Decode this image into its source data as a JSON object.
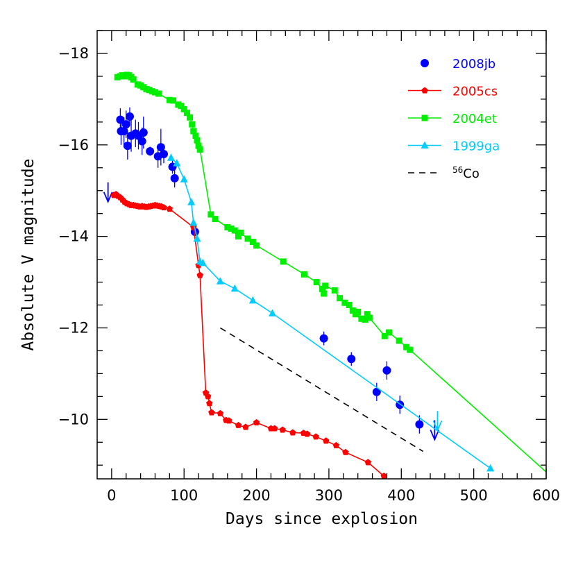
{
  "chart_data": {
    "type": "scatter",
    "xlabel": "Days since explosion",
    "ylabel": "Absolute V magnitude",
    "xlim": [
      -20,
      600
    ],
    "ylim": [
      -8.7,
      -18.5
    ],
    "y_inverted": true,
    "xticks": [
      0,
      100,
      200,
      300,
      400,
      500,
      600
    ],
    "xtick_labels": [
      "0",
      "100",
      "200",
      "300",
      "400",
      "500",
      "600"
    ],
    "yticks": [
      -18,
      -16,
      -14,
      -12,
      -10
    ],
    "ytick_labels": [
      "−18",
      "−16",
      "−14",
      "−12",
      "−10"
    ],
    "legend_position": "top-right",
    "series": [
      {
        "name": "2008jb",
        "color": "#0000ff",
        "marker": "circle",
        "line": false,
        "points": [
          {
            "x": 12,
            "y": -16.55,
            "err": 0.25
          },
          {
            "x": 13,
            "y": -16.3,
            "err": 0.3
          },
          {
            "x": 17,
            "y": -16.3,
            "err": 0.3
          },
          {
            "x": 20,
            "y": -16.45,
            "err": 0.3
          },
          {
            "x": 22,
            "y": -15.98,
            "err": 0.3
          },
          {
            "x": 25,
            "y": -16.62,
            "err": 0.2
          },
          {
            "x": 27,
            "y": -16.2,
            "err": 0.35
          },
          {
            "x": 33,
            "y": -16.25,
            "err": 0.3
          },
          {
            "x": 37,
            "y": -16.2,
            "err": 0.3
          },
          {
            "x": 42,
            "y": -16.08,
            "err": 0.3
          },
          {
            "x": 44,
            "y": -16.27,
            "err": 0.35
          },
          {
            "x": 53,
            "y": -15.86,
            "err": 0.1
          },
          {
            "x": 64,
            "y": -15.75,
            "err": 0.25
          },
          {
            "x": 68,
            "y": -15.95,
            "err": 0.4
          },
          {
            "x": 72,
            "y": -15.8,
            "err": 0.2
          },
          {
            "x": 84,
            "y": -15.52,
            "err": 0.15
          },
          {
            "x": 87,
            "y": -15.27,
            "err": 0.2
          },
          {
            "x": 115,
            "y": -14.1,
            "err": 0.1
          },
          {
            "x": 293,
            "y": -11.77,
            "err": 0.15
          },
          {
            "x": 331,
            "y": -11.32,
            "err": 0.15
          },
          {
            "x": 366,
            "y": -10.6,
            "err": 0.2
          },
          {
            "x": 380,
            "y": -11.07,
            "err": 0.2
          },
          {
            "x": 398,
            "y": -10.32,
            "err": 0.2
          },
          {
            "x": 425,
            "y": -9.89,
            "err": 0.2
          }
        ],
        "upper_limits": [
          {
            "x": -5,
            "y": -15.0
          },
          {
            "x": 446,
            "y": -9.8
          }
        ]
      },
      {
        "name": "2005cs",
        "color": "#ff0000",
        "marker": "pentagon",
        "line": true,
        "points": [
          {
            "x": 3,
            "y": -14.9
          },
          {
            "x": 6,
            "y": -14.92
          },
          {
            "x": 9,
            "y": -14.88
          },
          {
            "x": 12,
            "y": -14.85
          },
          {
            "x": 15,
            "y": -14.8
          },
          {
            "x": 18,
            "y": -14.75
          },
          {
            "x": 21,
            "y": -14.72
          },
          {
            "x": 24,
            "y": -14.7
          },
          {
            "x": 27,
            "y": -14.68
          },
          {
            "x": 30,
            "y": -14.68
          },
          {
            "x": 33,
            "y": -14.67
          },
          {
            "x": 36,
            "y": -14.66
          },
          {
            "x": 39,
            "y": -14.65
          },
          {
            "x": 42,
            "y": -14.66
          },
          {
            "x": 45,
            "y": -14.65
          },
          {
            "x": 48,
            "y": -14.64
          },
          {
            "x": 51,
            "y": -14.65
          },
          {
            "x": 54,
            "y": -14.66
          },
          {
            "x": 57,
            "y": -14.67
          },
          {
            "x": 60,
            "y": -14.68
          },
          {
            "x": 63,
            "y": -14.67
          },
          {
            "x": 66,
            "y": -14.66
          },
          {
            "x": 69,
            "y": -14.65
          },
          {
            "x": 72,
            "y": -14.63
          },
          {
            "x": 80,
            "y": -14.6
          },
          {
            "x": 113,
            "y": -14.2
          },
          {
            "x": 120,
            "y": -13.37
          },
          {
            "x": 122,
            "y": -13.15
          },
          {
            "x": 130,
            "y": -10.58
          },
          {
            "x": 133,
            "y": -10.5
          },
          {
            "x": 135,
            "y": -10.35
          },
          {
            "x": 138,
            "y": -10.15
          },
          {
            "x": 150,
            "y": -10.13
          },
          {
            "x": 158,
            "y": -9.98
          },
          {
            "x": 162,
            "y": -9.97
          },
          {
            "x": 175,
            "y": -9.87
          },
          {
            "x": 185,
            "y": -9.83
          },
          {
            "x": 200,
            "y": -9.93
          },
          {
            "x": 220,
            "y": -9.8
          },
          {
            "x": 225,
            "y": -9.8
          },
          {
            "x": 236,
            "y": -9.77
          },
          {
            "x": 250,
            "y": -9.71
          },
          {
            "x": 265,
            "y": -9.7
          },
          {
            "x": 270,
            "y": -9.68
          },
          {
            "x": 282,
            "y": -9.62
          },
          {
            "x": 296,
            "y": -9.53
          },
          {
            "x": 310,
            "y": -9.43
          },
          {
            "x": 323,
            "y": -9.28
          },
          {
            "x": 354,
            "y": -9.06
          },
          {
            "x": 376,
            "y": -8.76
          }
        ]
      },
      {
        "name": "2004et",
        "color": "#00ee00",
        "marker": "square",
        "line": true,
        "points": [
          {
            "x": 8,
            "y": -17.48
          },
          {
            "x": 12,
            "y": -17.5
          },
          {
            "x": 15,
            "y": -17.52
          },
          {
            "x": 18,
            "y": -17.5
          },
          {
            "x": 21,
            "y": -17.53
          },
          {
            "x": 24,
            "y": -17.52
          },
          {
            "x": 27,
            "y": -17.48
          },
          {
            "x": 30,
            "y": -17.43
          },
          {
            "x": 36,
            "y": -17.32
          },
          {
            "x": 40,
            "y": -17.3
          },
          {
            "x": 44,
            "y": -17.26
          },
          {
            "x": 48,
            "y": -17.22
          },
          {
            "x": 52,
            "y": -17.2
          },
          {
            "x": 56,
            "y": -17.17
          },
          {
            "x": 60,
            "y": -17.15
          },
          {
            "x": 65,
            "y": -17.12
          },
          {
            "x": 80,
            "y": -16.98
          },
          {
            "x": 85,
            "y": -16.97
          },
          {
            "x": 92,
            "y": -16.88
          },
          {
            "x": 96,
            "y": -16.85
          },
          {
            "x": 100,
            "y": -16.78
          },
          {
            "x": 104,
            "y": -16.7
          },
          {
            "x": 108,
            "y": -16.6
          },
          {
            "x": 111,
            "y": -16.45
          },
          {
            "x": 113,
            "y": -16.3
          },
          {
            "x": 116,
            "y": -16.2
          },
          {
            "x": 118,
            "y": -16.1
          },
          {
            "x": 120,
            "y": -15.98
          },
          {
            "x": 122,
            "y": -15.9
          },
          {
            "x": 137,
            "y": -14.48
          },
          {
            "x": 143,
            "y": -14.38
          },
          {
            "x": 160,
            "y": -14.2
          },
          {
            "x": 165,
            "y": -14.17
          },
          {
            "x": 170,
            "y": -14.13
          },
          {
            "x": 175,
            "y": -14.0
          },
          {
            "x": 178,
            "y": -14.08
          },
          {
            "x": 188,
            "y": -13.95
          },
          {
            "x": 195,
            "y": -13.88
          },
          {
            "x": 200,
            "y": -13.8
          },
          {
            "x": 237,
            "y": -13.45
          },
          {
            "x": 266,
            "y": -13.17
          },
          {
            "x": 283,
            "y": -13.0
          },
          {
            "x": 291,
            "y": -12.85
          },
          {
            "x": 293,
            "y": -12.75
          },
          {
            "x": 295,
            "y": -12.92
          },
          {
            "x": 308,
            "y": -12.82
          },
          {
            "x": 315,
            "y": -12.65
          },
          {
            "x": 322,
            "y": -12.55
          },
          {
            "x": 328,
            "y": -12.5
          },
          {
            "x": 333,
            "y": -12.38
          },
          {
            "x": 337,
            "y": -12.3
          },
          {
            "x": 340,
            "y": -12.35
          },
          {
            "x": 345,
            "y": -12.2
          },
          {
            "x": 350,
            "y": -12.18
          },
          {
            "x": 353,
            "y": -12.3
          },
          {
            "x": 356,
            "y": -12.22
          },
          {
            "x": 377,
            "y": -11.82
          },
          {
            "x": 383,
            "y": -11.9
          },
          {
            "x": 397,
            "y": -11.72
          },
          {
            "x": 407,
            "y": -11.58
          },
          {
            "x": 412,
            "y": -11.52
          },
          {
            "x": 600,
            "y": -8.85
          }
        ],
        "markerless_last": true
      },
      {
        "name": "1999ga",
        "color": "#00ccff",
        "marker": "triangle",
        "line": true,
        "points": [
          {
            "x": 82,
            "y": -15.72
          },
          {
            "x": 90,
            "y": -15.6
          },
          {
            "x": 100,
            "y": -15.25
          },
          {
            "x": 110,
            "y": -14.75
          },
          {
            "x": 113,
            "y": -14.3
          },
          {
            "x": 118,
            "y": -13.95
          },
          {
            "x": 122,
            "y": -13.45
          },
          {
            "x": 126,
            "y": -13.42
          },
          {
            "x": 150,
            "y": -13.02
          },
          {
            "x": 170,
            "y": -12.86
          },
          {
            "x": 195,
            "y": -12.6
          },
          {
            "x": 222,
            "y": -12.32
          },
          {
            "x": 523,
            "y": -8.93
          }
        ],
        "upper_limits": [
          {
            "x": 450,
            "y": -10.0
          }
        ]
      },
      {
        "name": "⁵⁶Co",
        "legend_main": "Co",
        "legend_sup": "56",
        "color": "#000000",
        "line": true,
        "dashed": true,
        "points": [
          {
            "x": 150,
            "y": -12.0
          },
          {
            "x": 430,
            "y": -9.3
          }
        ]
      }
    ]
  }
}
